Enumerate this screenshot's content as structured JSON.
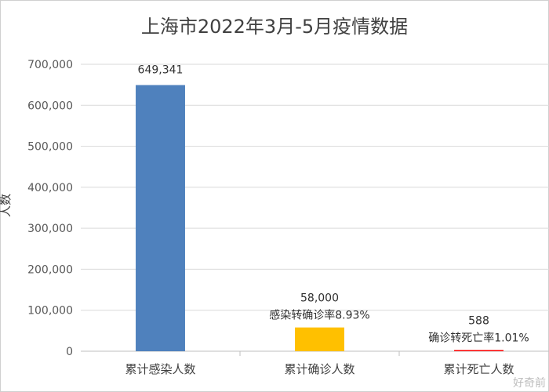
{
  "chart_data": {
    "type": "bar",
    "title": "上海市2022年3月-5月疫情数据",
    "ylabel": "人数",
    "xlabel": "",
    "categories": [
      "累计感染人数",
      "累计确诊人数",
      "累计死亡人数"
    ],
    "values": [
      649341,
      58000,
      588
    ],
    "data_labels": [
      "649,341",
      "58,000",
      "588"
    ],
    "annotations": [
      "",
      "感染转确诊率8.93%",
      "确诊转死亡率1.01%"
    ],
    "colors": [
      "#4f81bd",
      "#ffc000",
      "#ff0000"
    ],
    "ylim": [
      0,
      700000
    ],
    "yticks": [
      0,
      100000,
      200000,
      300000,
      400000,
      500000,
      600000,
      700000
    ],
    "ytick_labels": [
      "0",
      "100,000",
      "200,000",
      "300,000",
      "400,000",
      "500,000",
      "600,000",
      "700,000"
    ],
    "grid": true,
    "legend": "none"
  },
  "watermark": "好奇前"
}
